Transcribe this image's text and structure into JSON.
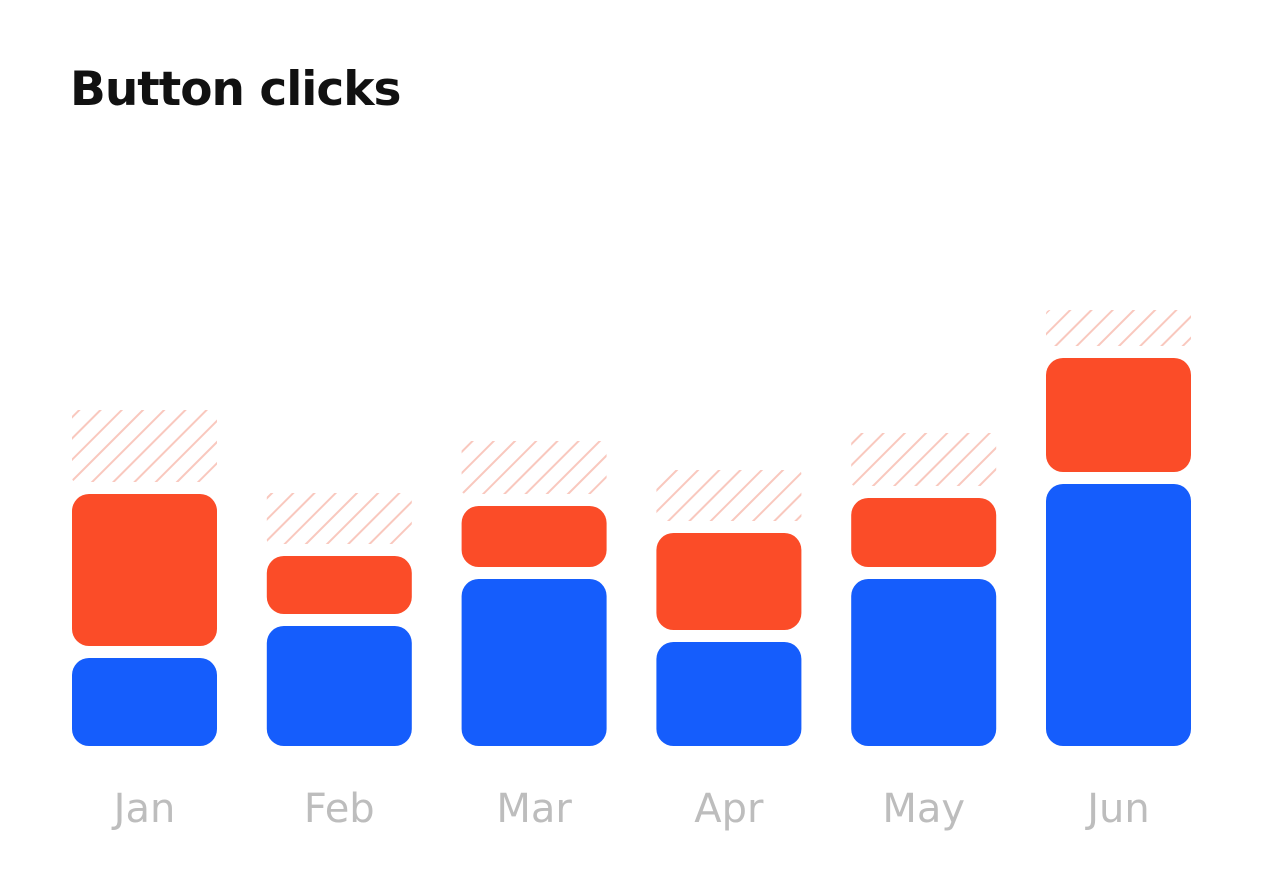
{
  "chart_data": {
    "type": "bar",
    "stacked": true,
    "title": "Button clicks",
    "xlabel": "",
    "ylabel": "",
    "categories": [
      "Jan",
      "Feb",
      "Mar",
      "Apr",
      "May",
      "Jun"
    ],
    "series": [
      {
        "values": [
          88,
          120,
          167,
          104,
          167,
          262
        ],
        "color": "#155dfc"
      },
      {
        "values": [
          152,
          58,
          61,
          97,
          69,
          114
        ],
        "color": "#fb4c28"
      },
      {
        "values": [
          72,
          51,
          53,
          51,
          53,
          36
        ],
        "color": "#f9c8be",
        "pattern": "diagonal-hatch"
      }
    ],
    "ylim": [
      0,
      430
    ],
    "grid": false,
    "legend": "none"
  }
}
